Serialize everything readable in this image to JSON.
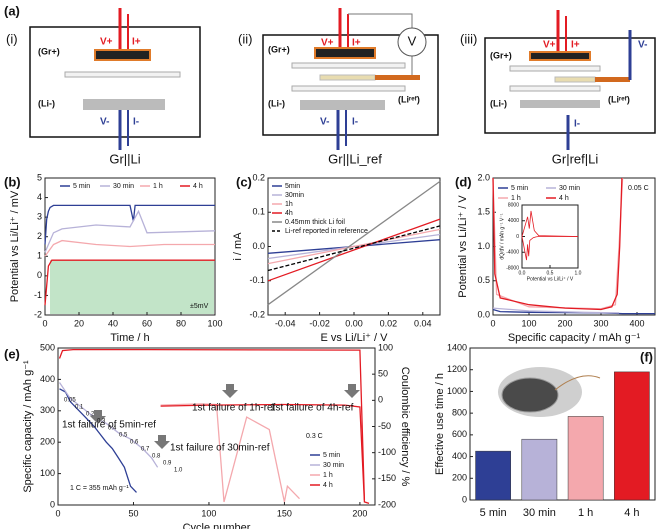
{
  "panel_a": {
    "label": "(a)",
    "diagrams": [
      {
        "label": "(i)",
        "caption": "Gr||Li",
        "texts": [
          "V+",
          "I+",
          "(Gr+)",
          "(Li-)",
          "V-",
          "I-"
        ]
      },
      {
        "label": "(ii)",
        "caption": "Gr||Li_ref",
        "texts": [
          "V+",
          "I+",
          "(Gr+)",
          "(Li-)",
          "V-",
          "I-",
          "V",
          "(Liʳᵉᶠ)"
        ]
      },
      {
        "label": "(iii)",
        "caption": "Gr|ref|Li",
        "texts": [
          "V+",
          "I+",
          "(Gr+)",
          "(Li-)",
          "V-",
          "I-",
          "(Liʳᵉᶠ)"
        ]
      }
    ]
  },
  "chart_data": [
    {
      "panel": "(b)",
      "type": "line",
      "xlabel": "Time / h",
      "ylabel": "Potential vs Li/Li⁺ / mV",
      "xlim": [
        0,
        100
      ],
      "xticks": [
        0,
        20,
        40,
        60,
        80,
        100
      ],
      "ylim": [
        -2,
        5
      ],
      "yticks": [
        -2,
        -1,
        0,
        1,
        2,
        3,
        4,
        5
      ],
      "legend": "top",
      "annotations": [
        "±5mV"
      ],
      "series": [
        {
          "name": "5 min",
          "color": "#2e3f95",
          "x": [
            0,
            1,
            2,
            3,
            5,
            10,
            30,
            50,
            52,
            53,
            55,
            60,
            80,
            100
          ],
          "values": [
            1.6,
            2.9,
            3.3,
            3.5,
            3.6,
            3.6,
            3.6,
            3.6,
            2.8,
            3.6,
            3.6,
            3.6,
            3.6,
            3.6
          ]
        },
        {
          "name": "30 min",
          "color": "#b7b2d8",
          "x": [
            0,
            5,
            10,
            30,
            50,
            55,
            60,
            100
          ],
          "values": [
            1.2,
            2.2,
            2.4,
            2.6,
            2.5,
            3.3,
            2.2,
            2.3
          ]
        },
        {
          "name": "1 h",
          "color": "#f4a8ad",
          "x": [
            0,
            5,
            10,
            30,
            50,
            70,
            100
          ],
          "values": [
            1.0,
            1.6,
            1.8,
            1.6,
            1.5,
            1.6,
            1.6
          ]
        },
        {
          "name": "4 h",
          "color": "#e31b23",
          "x": [
            0,
            2,
            4,
            10,
            50,
            100
          ],
          "values": [
            -1.5,
            0.5,
            0.8,
            0.8,
            0.8,
            0.8
          ]
        }
      ]
    },
    {
      "panel": "(c)",
      "type": "line",
      "xlabel": "E vs Li/Li⁺ / V",
      "ylabel": "i / mA",
      "xlim": [
        -0.05,
        0.05
      ],
      "xticks": [
        -0.04,
        -0.02,
        {
          "value": 0,
          "label": "0.00"
        },
        0.02,
        0.04
      ],
      "ylim": [
        -0.2,
        0.2
      ],
      "yticks": [
        -0.2,
        -0.1,
        {
          "value": 0,
          "label": "0.0"
        },
        0.1,
        0.2
      ],
      "legend": "upper left",
      "series": [
        {
          "name": "5min",
          "color": "#2e3f95",
          "x": [
            -0.05,
            0.05
          ],
          "values": [
            -0.02,
            0.02
          ]
        },
        {
          "name": "30min",
          "color": "#b7b2d8",
          "x": [
            -0.05,
            0.05
          ],
          "values": [
            -0.035,
            0.035
          ]
        },
        {
          "name": "1h",
          "color": "#f4a8ad",
          "x": [
            -0.05,
            0.05
          ],
          "values": [
            -0.05,
            0.05
          ]
        },
        {
          "name": "4h",
          "color": "#e31b23",
          "x": [
            -0.05,
            0.05
          ],
          "values": [
            -0.1,
            0.08
          ]
        },
        {
          "name": "0.45mm thick Li foil",
          "color": "#888888",
          "x": [
            -0.05,
            0.05
          ],
          "values": [
            -0.17,
            0.19
          ]
        },
        {
          "name": "Li-ref reported in reference",
          "color": "#000000",
          "dash": true,
          "x": [
            -0.05,
            0.05
          ],
          "values": [
            -0.07,
            0.06
          ]
        }
      ]
    },
    {
      "panel": "(d)",
      "type": "line",
      "xlabel": "Specific capacity / mAh g⁻¹",
      "ylabel": "Potential vs Li/Li⁺ / V",
      "xlim": [
        0,
        450
      ],
      "xticks": [
        0,
        100,
        200,
        300,
        400
      ],
      "ylim": [
        0,
        2.0
      ],
      "yticks": [
        {
          "value": 0,
          "label": "0.0"
        },
        0.5,
        {
          "value": 1,
          "label": "1.0"
        },
        1.5,
        {
          "value": 2,
          "label": "2.0"
        }
      ],
      "legend": "upper left",
      "annotations": [
        "0.05 C"
      ],
      "series": [
        {
          "name": "5 min",
          "color": "#2e3f95",
          "x": [
            0,
            20,
            100,
            300,
            360,
            450
          ],
          "values": [
            0.08,
            0.05,
            0.04,
            0.03,
            0.02,
            0.02
          ]
        },
        {
          "name": "30 min",
          "color": "#b7b2d8",
          "x": [
            0,
            100,
            250,
            350
          ],
          "values": [
            0.1,
            0.06,
            0.04,
            0.03
          ]
        },
        {
          "name": "1 h",
          "color": "#f4a8ad",
          "x": [
            0,
            10,
            100,
            300,
            340,
            350,
            360
          ],
          "values": [
            2.0,
            0.3,
            0.12,
            0.09,
            0.15,
            1.0,
            2.0
          ]
        },
        {
          "name": "4 h",
          "color": "#e31b23",
          "x": [
            0,
            5,
            20,
            100,
            200,
            300,
            330,
            345,
            352,
            358
          ],
          "values": [
            2.0,
            0.6,
            0.25,
            0.15,
            0.1,
            0.08,
            0.12,
            0.3,
            1.0,
            2.0
          ]
        }
      ]
    },
    {
      "type": "line",
      "xlabel": "Potential vs Li/Li⁺ / V",
      "ylabel": "dQ/dV / mAh g⁻¹ V⁻¹",
      "xlim": [
        0,
        1.0
      ],
      "xticks": [
        {
          "value": 0,
          "label": "0.0"
        },
        0.5,
        {
          "value": 1,
          "label": "1.0"
        }
      ],
      "ylim": [
        -8000,
        8000
      ],
      "yticks": [
        -8000,
        -4000,
        0,
        4000,
        8000
      ],
      "series": [
        {
          "color": "#e31b23",
          "x": [
            0,
            0.08,
            0.1,
            0.12,
            0.14,
            0.2,
            0.25,
            0.3,
            0.5,
            1.0
          ],
          "values": [
            0,
            -6000,
            -2000,
            -5000,
            -1000,
            -300,
            -100,
            0,
            0,
            0
          ]
        },
        {
          "color": "#e31b23",
          "x": [
            0,
            0.1,
            0.13,
            0.16,
            0.22,
            0.3,
            1.0
          ],
          "values": [
            0,
            5000,
            2000,
            6500,
            1500,
            200,
            0
          ]
        }
      ]
    },
    {
      "panel": "(e)",
      "type": "line",
      "xlabel": "Cycle number",
      "ylabel": "Specific capacity / mAh g⁻¹",
      "y2label": "Coulombic efficiency / %",
      "xlim": [
        0,
        210
      ],
      "xticks": [
        0,
        50,
        100,
        150,
        200
      ],
      "ylim": [
        0,
        500
      ],
      "yticks": [
        0,
        100,
        200,
        300,
        400,
        500
      ],
      "y2lim": [
        -200,
        100
      ],
      "y2ticks": [
        -200,
        -150,
        -100,
        -50,
        0,
        50,
        100
      ],
      "legend": "lower right",
      "annotations": [
        "1st failure of 1h-ref",
        "1st failure of 4h-ref",
        "1st failure of 5min-ref",
        "1st failure of 30min-ref",
        "0.3 C",
        "1 C = 355 mAh g⁻¹"
      ],
      "rate_labels": [
        "0.05",
        "0.1",
        "0.2",
        "0.3",
        "0.4",
        "0.5",
        "0.6",
        "0.7",
        "0.8",
        "0.9",
        "1.0"
      ],
      "series": [
        {
          "name": "5 min",
          "color": "#2e3f95",
          "x": [
            1,
            5,
            8,
            12,
            16,
            20,
            24,
            28,
            32,
            36,
            40,
            44,
            48,
            52
          ],
          "values": [
            370,
            360,
            330,
            310,
            290,
            270,
            250,
            225,
            200,
            180,
            150,
            120,
            60,
            40
          ]
        },
        {
          "name": "30 min",
          "color": "#b7b2d8",
          "x": [
            1,
            8,
            16,
            24,
            32,
            40,
            48,
            56,
            62,
            66
          ],
          "values": [
            390,
            340,
            310,
            280,
            260,
            230,
            210,
            180,
            150,
            120
          ]
        },
        {
          "name": "1 h",
          "color": "#f4a8ad",
          "x": [
            68,
            80,
            95,
            105,
            110,
            125,
            140,
            150,
            152,
            160
          ],
          "values": [
            318,
            320,
            322,
            320,
            10,
            280,
            240,
            10,
            60,
            20
          ]
        },
        {
          "name": "4 h",
          "color": "#e31b23",
          "x": [
            68,
            100,
            150,
            190,
            200,
            203,
            206
          ],
          "values": [
            315,
            318,
            320,
            318,
            312,
            10,
            5
          ]
        },
        {
          "color": "#e31b23",
          "axis": "y2",
          "x": [
            1,
            3,
            10,
            60,
            200,
            203
          ],
          "values": [
            80,
            95,
            97,
            97,
            96,
            -190
          ]
        }
      ]
    },
    {
      "panel": "(f)",
      "type": "bar",
      "ylabel": "Effective use time / h",
      "categories": [
        "5 min",
        "30 min",
        "1 h",
        "4 h"
      ],
      "values": [
        450,
        560,
        770,
        1180
      ],
      "colors": [
        "#2e3f95",
        "#b7b2d8",
        "#f4a8ad",
        "#e31b23"
      ],
      "ylim": [
        0,
        1400
      ],
      "yticks": [
        0,
        200,
        400,
        600,
        800,
        1000,
        1200,
        1400
      ]
    }
  ]
}
